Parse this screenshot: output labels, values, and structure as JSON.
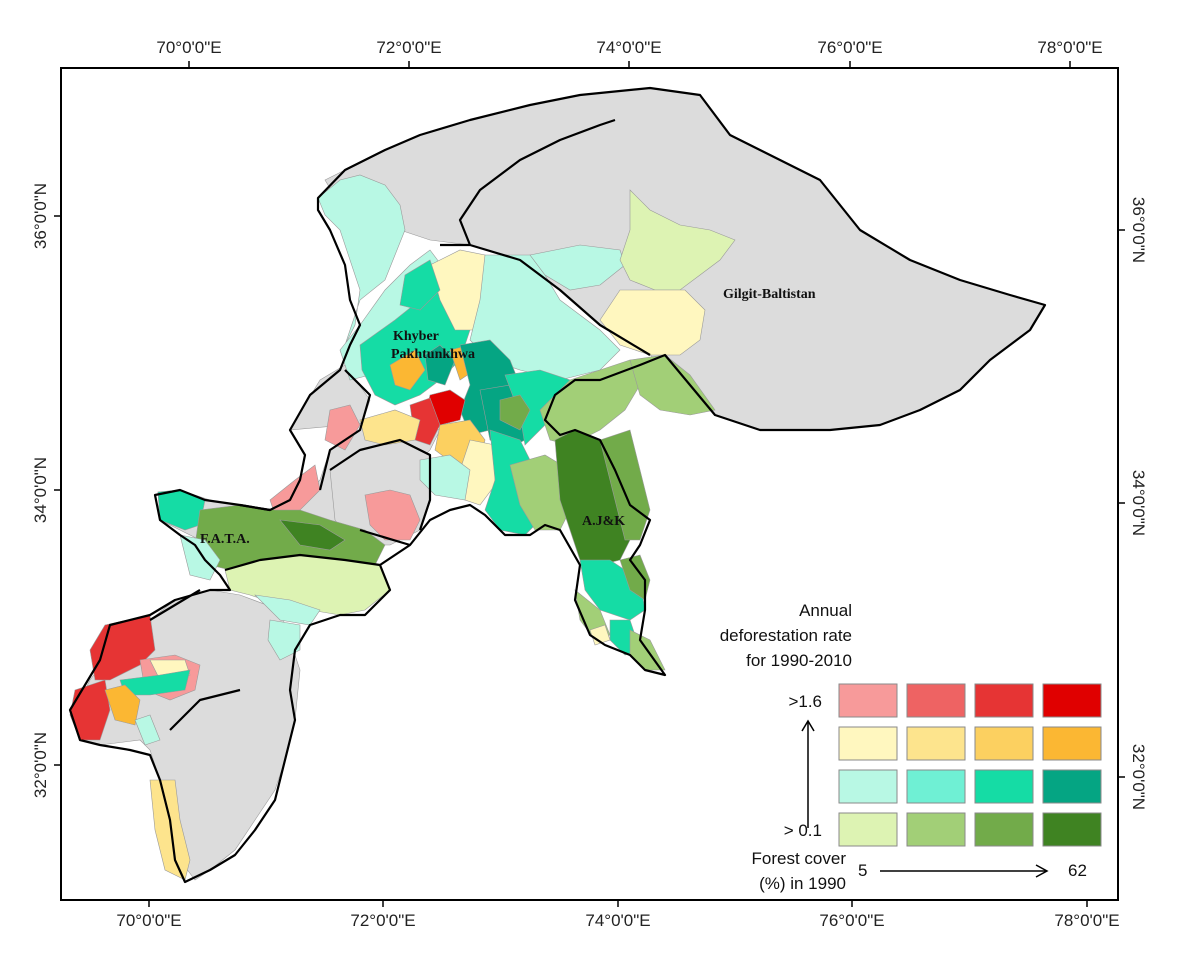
{
  "map": {
    "top_ticks": [
      "70°0'0\"E",
      "72°0'0\"E",
      "74°0'0\"E",
      "76°0'0\"E",
      "78°0'0\"E"
    ],
    "bottom_ticks": [
      "70°0'0\"E",
      "72°0'0\"E",
      "74°0'0\"E",
      "76°0'0\"E",
      "78°0'0\"E"
    ],
    "left_ticks": [
      "36°0'0\"N",
      "34°0'0\"N",
      "32°0'0\"N"
    ],
    "right_ticks": [
      "36°0'0\"N",
      "34°0'0\"N",
      "32°0'0\"N"
    ],
    "regions": {
      "kp_line1": "Khyber",
      "kp_line2": "Pakhtunkhwa",
      "gb": "Gilgit-Baltistan",
      "fata": "F.A.T.A.",
      "ajk": "A.J&K"
    }
  },
  "legend": {
    "title_line1": "Annual",
    "title_line2": "deforestation rate",
    "title_line3": "for 1990-2010",
    "high_label": ">1.6",
    "low_label": "> 0.1",
    "x_label_line1": "Forest cover",
    "x_label_line2": "(%) in 1990",
    "x_min": "5",
    "x_max": "62",
    "grid": [
      [
        "#f79a9a",
        "#ee6363",
        "#e63434",
        "#e00000"
      ],
      [
        "#fff7bf",
        "#fde48d",
        "#fcd060",
        "#fbb733"
      ],
      [
        "#b8f8e4",
        "#6ff0d4",
        "#15dca5",
        "#05a583"
      ],
      [
        "#ddf3b3",
        "#a2cf77",
        "#72ab4a",
        "#3f8322"
      ]
    ]
  },
  "colors": {
    "land": "#dcdcdc",
    "outline": "#000000"
  }
}
